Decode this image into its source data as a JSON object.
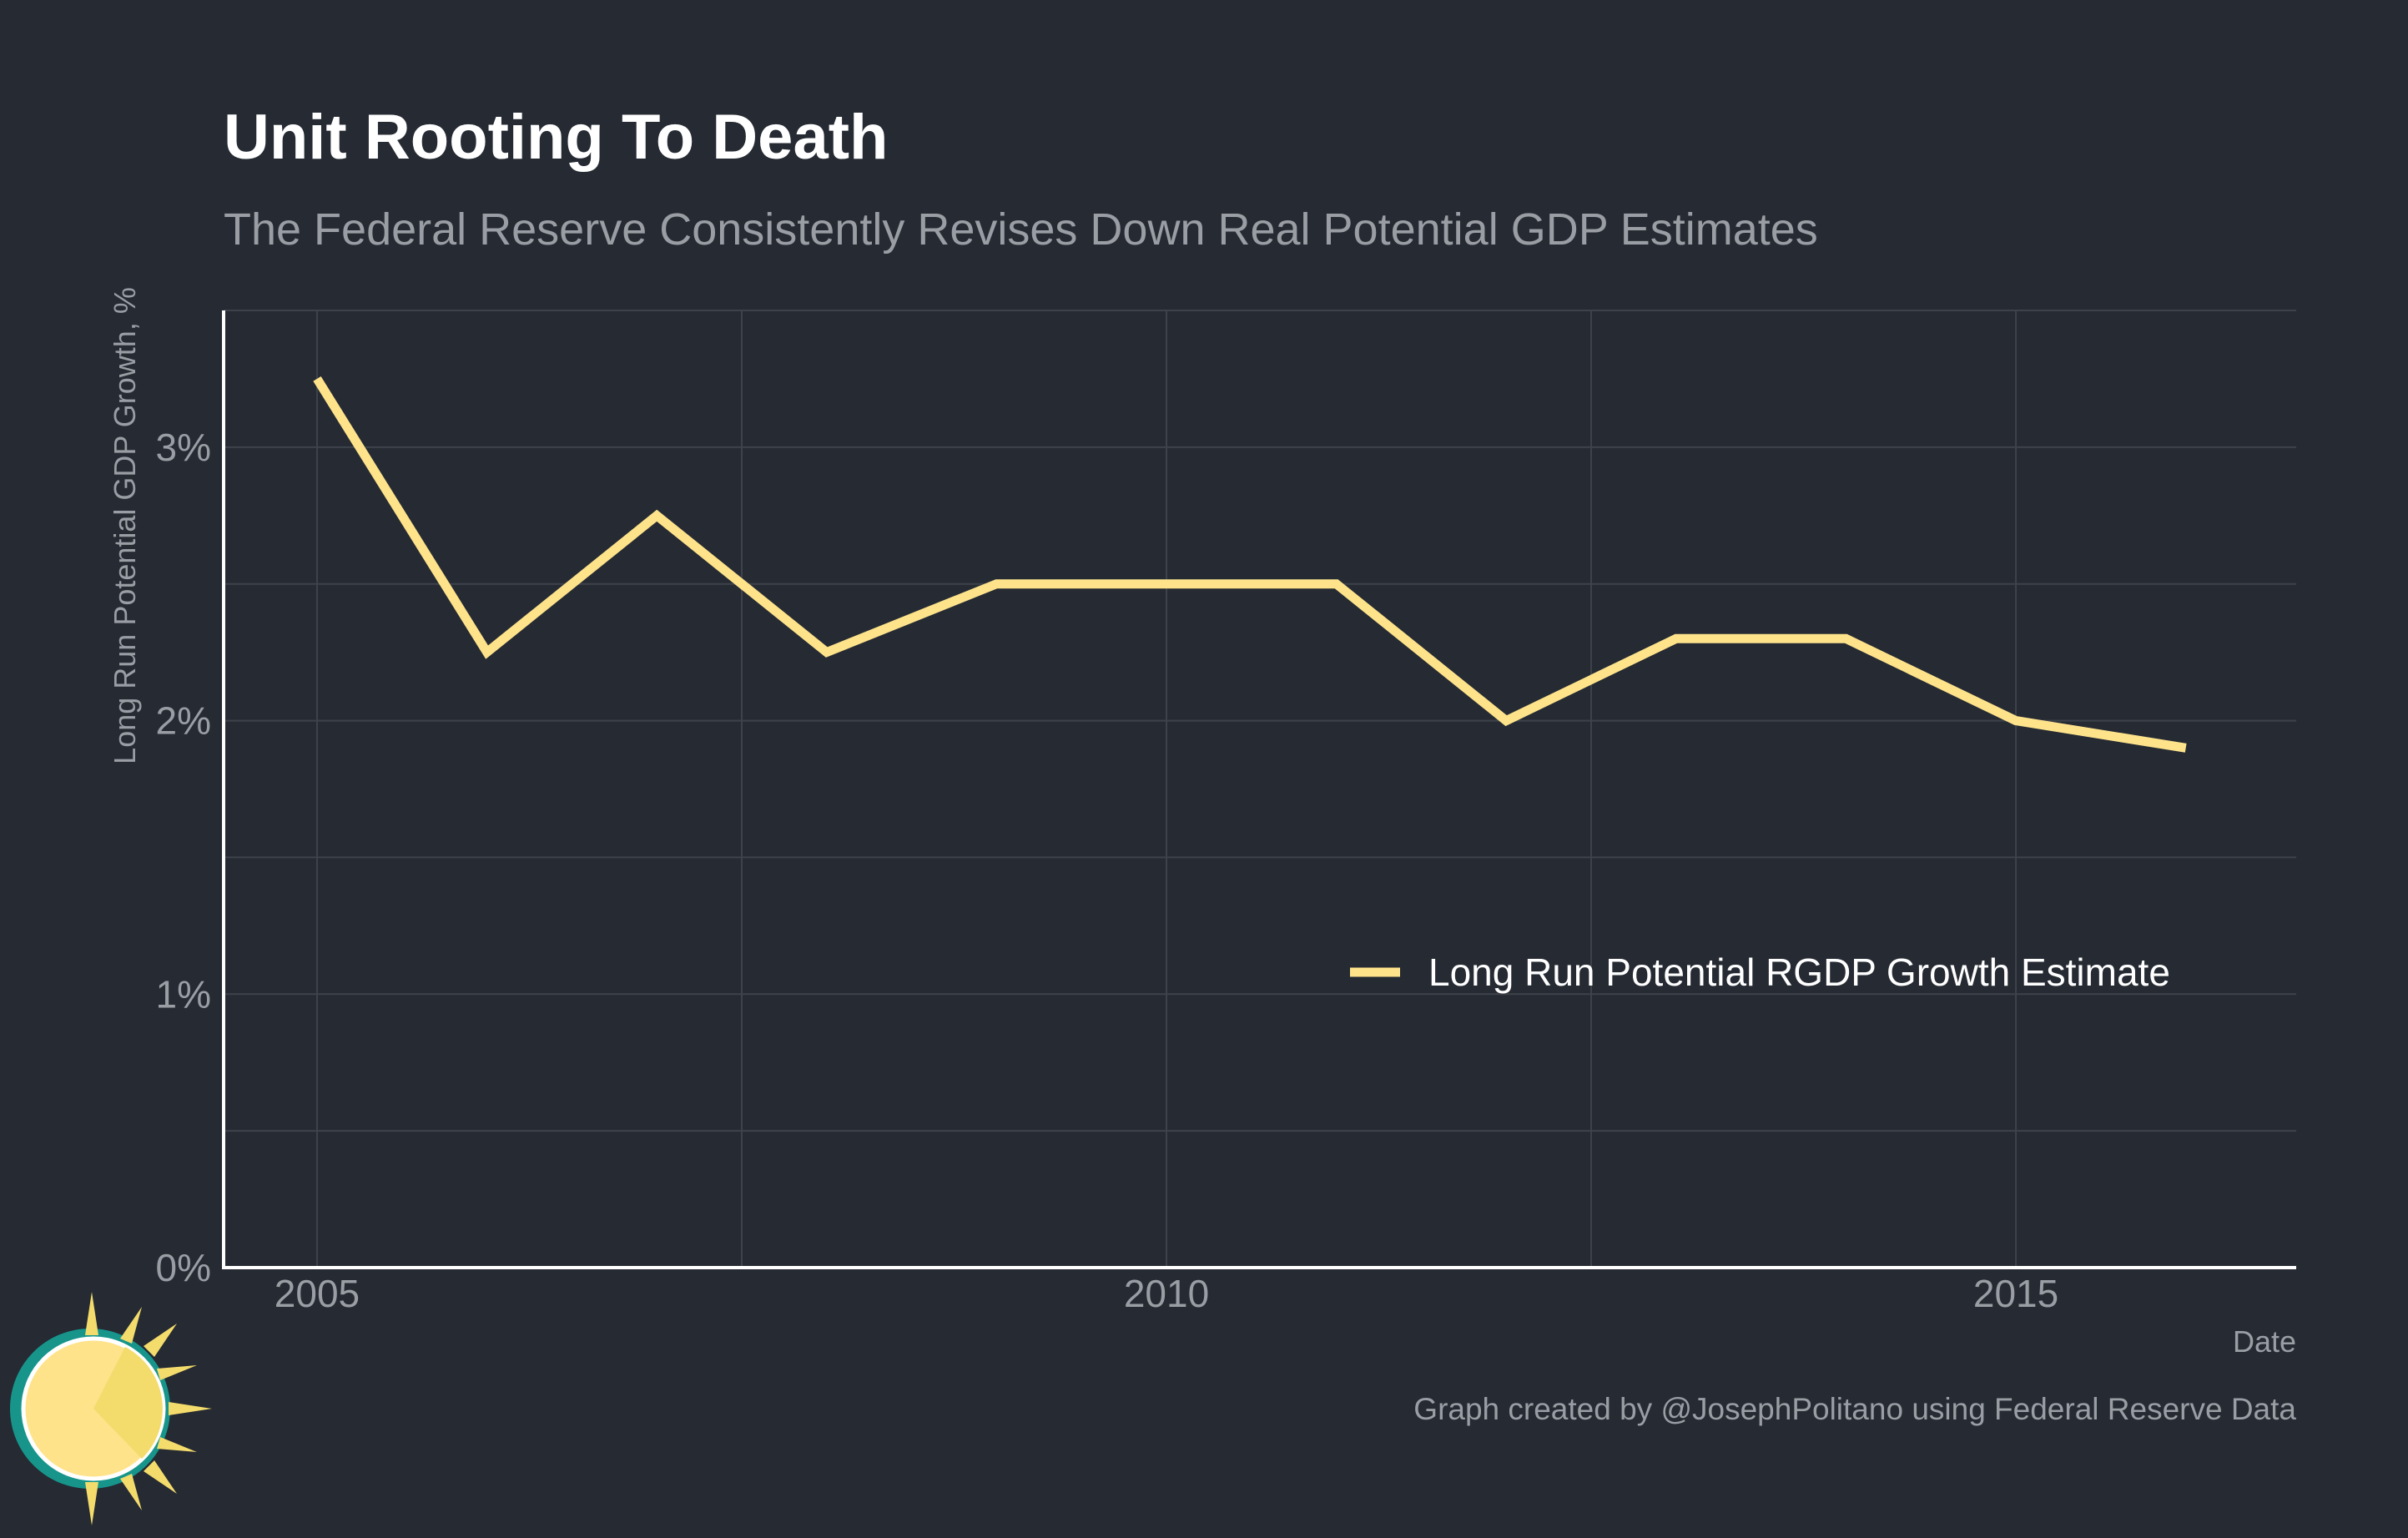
{
  "chart_data": {
    "type": "line",
    "title": "Unit Rooting To Death",
    "subtitle": "The Federal Reserve Consistently Revises Down Real Potential GDP Estimates",
    "xlabel": "Date",
    "ylabel": "Long Run Potential GDP Growth, %",
    "caption": "Graph created by @JosephPolitano using Federal Reserve Data",
    "x": [
      2005,
      2006,
      2007,
      2008,
      2009,
      2010,
      2011,
      2012,
      2013,
      2014,
      2015,
      2016
    ],
    "series": [
      {
        "name": "Long Run Potential RGDP Growth Estimate",
        "values": [
          3.25,
          2.25,
          2.75,
          2.25,
          2.5,
          2.5,
          2.5,
          2.0,
          2.3,
          2.3,
          2.0,
          1.9
        ],
        "color": "#fee38b"
      }
    ],
    "xlim": [
      2004.45,
      2016.65
    ],
    "ylim": [
      0,
      3.5
    ],
    "xticks": [
      {
        "value": 2005,
        "label": "2005"
      },
      {
        "value": 2010,
        "label": "2010"
      },
      {
        "value": 2015,
        "label": "2015"
      }
    ],
    "x_minor_ticks": [
      2007.5,
      2012.5
    ],
    "yticks": [
      {
        "value": 0,
        "label": "0%"
      },
      {
        "value": 1,
        "label": "1%"
      },
      {
        "value": 2,
        "label": "2%"
      },
      {
        "value": 3,
        "label": "3%"
      }
    ],
    "y_minor_ticks": [
      0.5,
      1.5,
      2.5,
      3.5
    ],
    "grid": true,
    "legend_position": "inside-right",
    "colors": {
      "background": "#252a33",
      "grid": "#3e434b",
      "axis": "#ffffff",
      "line": "#fee38b"
    }
  }
}
